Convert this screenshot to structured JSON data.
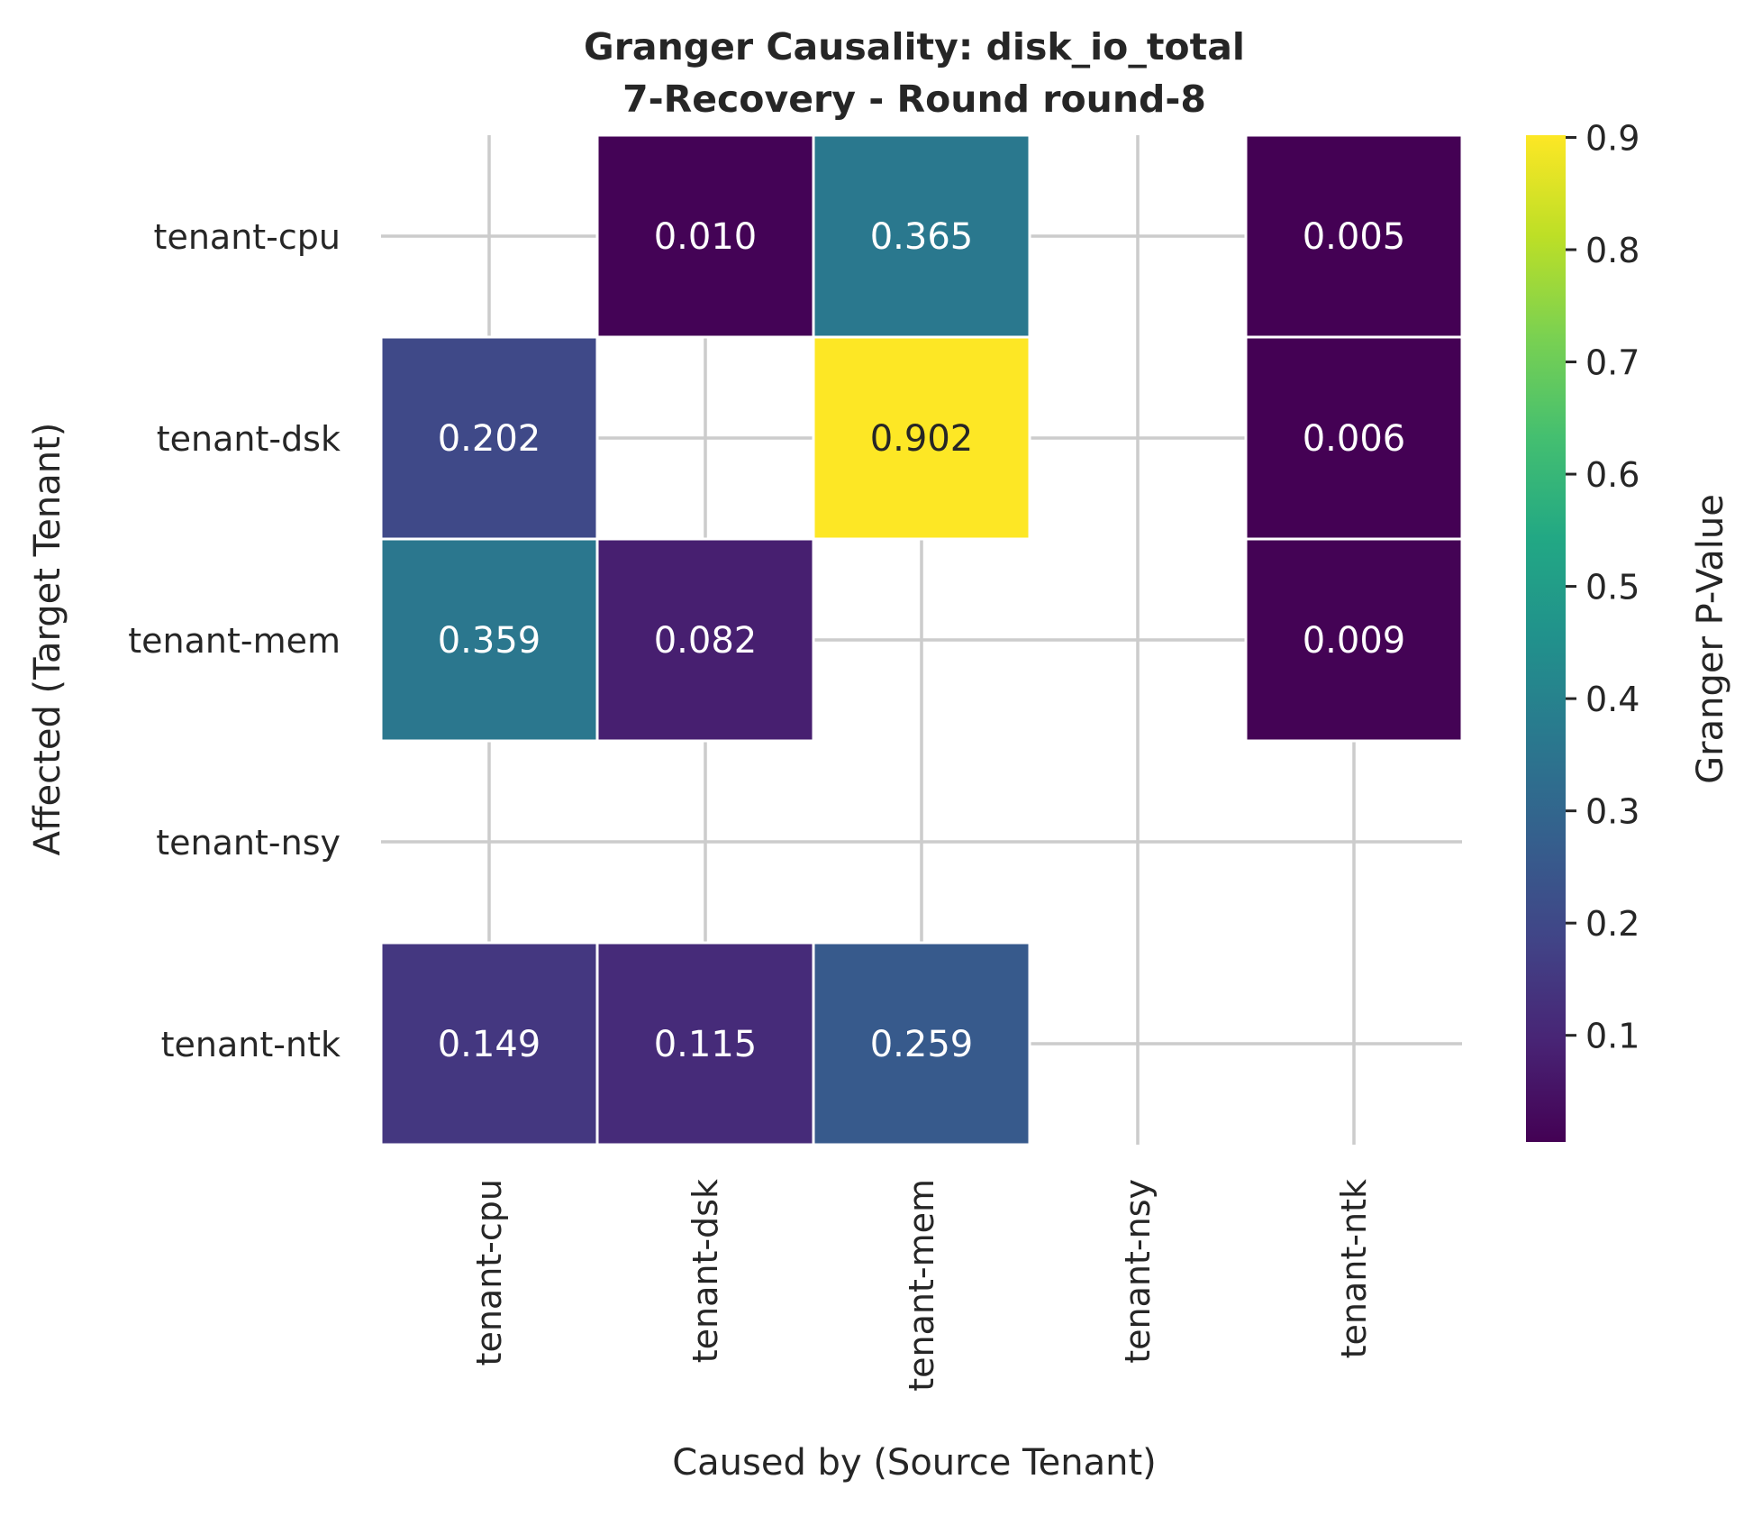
{
  "chart_data": {
    "type": "heatmap",
    "title": "Granger Causality: disk_io_total",
    "subtitle": "7-Recovery - Round round-8",
    "xlabel": "Caused by (Source Tenant)",
    "ylabel": "Affected (Target Tenant)",
    "x_categories": [
      "tenant-cpu",
      "tenant-dsk",
      "tenant-mem",
      "tenant-nsy",
      "tenant-ntk"
    ],
    "y_categories": [
      "tenant-cpu",
      "tenant-dsk",
      "tenant-mem",
      "tenant-nsy",
      "tenant-ntk"
    ],
    "values": [
      [
        null,
        0.01,
        0.365,
        null,
        0.005
      ],
      [
        0.202,
        null,
        0.902,
        null,
        0.006
      ],
      [
        0.359,
        0.082,
        null,
        null,
        0.009
      ],
      [
        null,
        null,
        null,
        null,
        null
      ],
      [
        0.149,
        0.115,
        0.259,
        null,
        null
      ]
    ],
    "cell_labels": [
      [
        null,
        "0.010",
        "0.365",
        null,
        "0.005"
      ],
      [
        null,
        null,
        "0.902",
        null,
        "0.006"
      ],
      [
        "0.359",
        "0.082",
        null,
        null,
        "0.009"
      ],
      [
        null,
        null,
        null,
        null,
        null
      ],
      [
        "0.149",
        "0.115",
        "0.259",
        null,
        null
      ]
    ],
    "colorbar": {
      "label": "Granger P-Value",
      "colormap": "viridis",
      "range": [
        0.005,
        0.902
      ],
      "ticks": [
        0.1,
        0.2,
        0.3,
        0.4,
        0.5,
        0.6,
        0.7,
        0.8,
        0.9
      ],
      "tick_labels": [
        "0.1",
        "0.2",
        "0.3",
        "0.4",
        "0.5",
        "0.6",
        "0.7",
        "0.8",
        "0.9"
      ]
    },
    "grid": true
  }
}
